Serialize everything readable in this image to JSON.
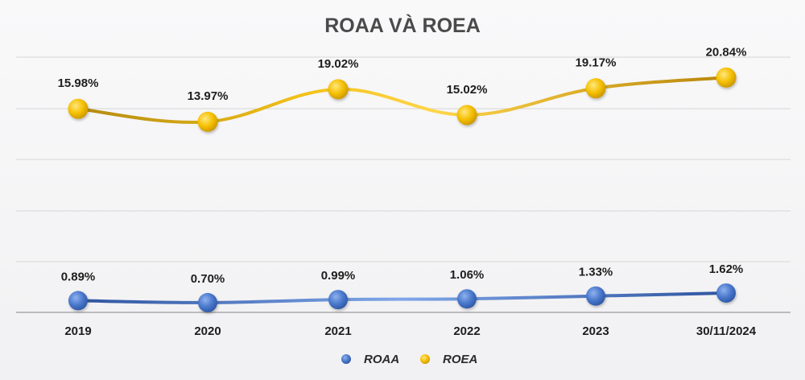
{
  "chart_data": {
    "type": "line",
    "title": "ROAA VÀ ROEA",
    "categories": [
      "2019",
      "2020",
      "2021",
      "2022",
      "2023",
      "30/11/2024"
    ],
    "series": [
      {
        "name": "ROAA",
        "values": [
          0.89,
          0.7,
          0.99,
          1.06,
          1.33,
          1.62
        ],
        "labels": [
          "0.89%",
          "0.70%",
          "0.99%",
          "1.06%",
          "1.33%",
          "1.62%"
        ],
        "color": "#4472c4"
      },
      {
        "name": "ROEA",
        "values": [
          15.98,
          13.97,
          19.02,
          15.02,
          19.17,
          20.84
        ],
        "labels": [
          "15.98%",
          "13.97%",
          "19.02%",
          "15.02%",
          "19.17%",
          "20.84%"
        ],
        "color": "#ffc000"
      }
    ],
    "legend_position": "bottom",
    "grid": true,
    "smooth": true
  }
}
